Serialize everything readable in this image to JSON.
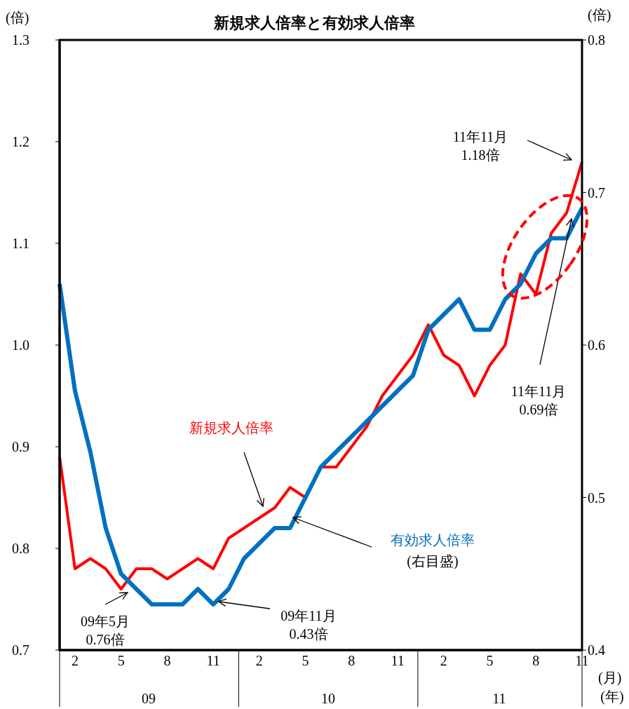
{
  "chart_data": {
    "type": "line",
    "title": "新規求人倍率と有効求人倍率",
    "xlabel": "(月)",
    "ylabel": "(倍)",
    "y2label": "(倍)",
    "categories": [
      null,
      "2",
      null,
      null,
      "5",
      null,
      null,
      "8",
      null,
      null,
      "11",
      null,
      null,
      "2",
      null,
      null,
      "5",
      null,
      null,
      "8",
      null,
      null,
      "11",
      null,
      null,
      "2",
      null,
      null,
      "5",
      null,
      null,
      "8",
      null,
      null,
      "11"
    ],
    "series": [
      {
        "name": "新規求人倍率",
        "color": "#ff0000",
        "values": [
          0.89,
          0.78,
          0.79,
          0.78,
          0.76,
          0.78,
          0.78,
          0.77,
          0.78,
          0.79,
          0.78,
          0.81,
          0.82,
          0.83,
          0.84,
          0.86,
          0.85,
          0.88,
          0.88,
          0.9,
          0.92,
          0.95,
          0.97,
          0.99,
          1.02,
          0.99,
          0.98,
          0.95,
          0.98,
          1.0,
          1.07,
          1.05,
          1.11,
          1.13,
          1.18
        ]
      },
      {
        "name": "有効求人倍率",
        "color": "#0070c0",
        "axis": "y2",
        "values": [
          0.64,
          0.57,
          0.53,
          0.48,
          0.45,
          0.44,
          0.43,
          0.43,
          0.43,
          0.44,
          0.43,
          0.44,
          0.46,
          0.47,
          0.48,
          0.48,
          0.5,
          0.52,
          0.53,
          0.54,
          0.55,
          0.56,
          0.57,
          0.58,
          0.61,
          0.62,
          0.63,
          0.61,
          0.61,
          0.63,
          0.64,
          0.66,
          0.67,
          0.67,
          0.69
        ]
      }
    ],
    "ylim": [
      0.7,
      1.3
    ],
    "yticks": [
      0.7,
      0.8,
      0.9,
      {
        "value": 1,
        "label": "1.0"
      },
      1.1,
      1.2,
      1.3
    ],
    "y2lim": [
      0.4,
      0.8
    ],
    "y2ticks": [
      0.4,
      0.5,
      0.6,
      0.7,
      0.8
    ],
    "grid": false,
    "legend": false,
    "marker": "none",
    "line_style": "solid",
    "annotations": [
      "(右目盛)",
      "09年5月\n0.76倍",
      {
        "text": "09年11月\n0.43倍",
        "x": "11",
        "y": 0.745
      },
      "11年11月\n1.18倍",
      "11年11月\n0.69倍",
      "09",
      "10",
      "11",
      "(年)"
    ]
  }
}
